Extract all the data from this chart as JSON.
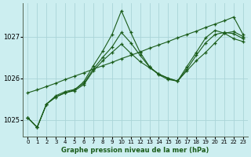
{
  "title": "Graphe pression niveau de la mer (hPa)",
  "bg_color": "#cceef0",
  "grid_color": "#aad4d8",
  "line_color": "#1a5c1a",
  "xlim": [
    -0.5,
    23.5
  ],
  "ylim": [
    1024.6,
    1027.8
  ],
  "yticks": [
    1025,
    1026,
    1027
  ],
  "xticks": [
    0,
    1,
    2,
    3,
    4,
    5,
    6,
    7,
    8,
    9,
    10,
    11,
    12,
    13,
    14,
    15,
    16,
    17,
    18,
    19,
    20,
    21,
    22,
    23
  ],
  "series": [
    [
      1025.05,
      1024.82,
      1025.38,
      1025.55,
      1025.65,
      1025.72,
      1025.92,
      1026.3,
      1026.65,
      1027.05,
      1027.62,
      1027.1,
      1026.62,
      1026.28,
      1026.08,
      1025.97,
      1025.93,
      1026.28,
      1026.62,
      1026.97,
      1027.15,
      1027.08,
      1026.95,
      1026.88
    ],
    [
      1025.05,
      1024.82,
      1025.38,
      1025.55,
      1025.65,
      1025.7,
      1025.85,
      1026.18,
      1026.42,
      1026.62,
      1026.82,
      1026.6,
      1026.4,
      1026.25,
      1026.1,
      1026.0,
      1025.93,
      1026.18,
      1026.42,
      1026.62,
      1026.85,
      1027.08,
      1027.12,
      1027.0
    ],
    [
      1025.05,
      1024.82,
      1025.38,
      1025.58,
      1025.68,
      1025.73,
      1025.88,
      1026.22,
      1026.5,
      1026.75,
      1027.1,
      1026.85,
      1026.55,
      1026.27,
      1026.1,
      1026.0,
      1025.93,
      1026.22,
      1026.55,
      1026.85,
      1027.05,
      1027.1,
      1027.07,
      1026.95
    ],
    [
      1025.65,
      1025.72,
      1025.8,
      1025.88,
      1025.97,
      1026.05,
      1026.13,
      1026.22,
      1026.3,
      1026.38,
      1026.47,
      1026.55,
      1026.63,
      1026.72,
      1026.8,
      1026.88,
      1026.97,
      1027.05,
      1027.13,
      1027.22,
      1027.3,
      1027.38,
      1027.47,
      1027.05
    ]
  ]
}
